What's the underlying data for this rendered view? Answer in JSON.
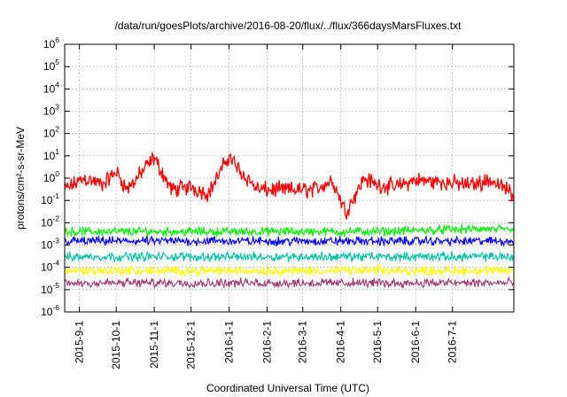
{
  "chart_data": {
    "type": "line",
    "title": "/data/run/goesPlots/archive/2016-08-20/flux/../flux/366daysMarsFluxes.txt",
    "xlabel": "Coordinated Universal Time (UTC)",
    "ylabel": "protons/cm²-s-sr-MeV",
    "yscale": "log",
    "ylim": [
      1e-06,
      1000000.0
    ],
    "xlim": [
      "2015-08-20",
      "2016-08-20"
    ],
    "grid": true,
    "legend": "none",
    "y_ticks": [
      {
        "base": "10",
        "exp": "-6"
      },
      {
        "base": "10",
        "exp": "-5"
      },
      {
        "base": "10",
        "exp": "-4"
      },
      {
        "base": "10",
        "exp": "-3"
      },
      {
        "base": "10",
        "exp": "-2"
      },
      {
        "base": "10",
        "exp": "-1"
      },
      {
        "base": "10",
        "exp": "0"
      },
      {
        "base": "10",
        "exp": "1"
      },
      {
        "base": "10",
        "exp": "2"
      },
      {
        "base": "10",
        "exp": "3"
      },
      {
        "base": "10",
        "exp": "4"
      },
      {
        "base": "10",
        "exp": "5"
      },
      {
        "base": "10",
        "exp": "6"
      }
    ],
    "x_ticks": [
      {
        "label": "2015-9-1",
        "date": "2015-09-01"
      },
      {
        "label": "2015-10-1",
        "date": "2015-10-01"
      },
      {
        "label": "2015-11-1",
        "date": "2015-11-01"
      },
      {
        "label": "2015-12-1",
        "date": "2015-12-01"
      },
      {
        "label": "2016-1-1",
        "date": "2016-01-01"
      },
      {
        "label": "2016-2-1",
        "date": "2016-02-01"
      },
      {
        "label": "2016-3-1",
        "date": "2016-03-01"
      },
      {
        "label": "2016-4-1",
        "date": "2016-04-01"
      },
      {
        "label": "2016-5-1",
        "date": "2016-05-01"
      },
      {
        "label": "2016-6-1",
        "date": "2016-06-01"
      },
      {
        "label": "2016-7-1",
        "date": "2016-07-01"
      }
    ],
    "series": [
      {
        "color": "#ff0000",
        "x": [
          "2015-08-20",
          "2015-09-05",
          "2015-09-20",
          "2015-10-01",
          "2015-10-10",
          "2015-10-25",
          "2015-11-01",
          "2015-11-15",
          "2015-12-01",
          "2015-12-15",
          "2016-01-01",
          "2016-01-10",
          "2016-01-25",
          "2016-02-10",
          "2016-02-25",
          "2016-03-10",
          "2016-03-25",
          "2016-04-05",
          "2016-04-20",
          "2016-05-01",
          "2016-05-15",
          "2016-06-01",
          "2016-06-15",
          "2016-07-01",
          "2016-07-15",
          "2016-08-01",
          "2016-08-20"
        ],
        "values": [
          0.3,
          1.0,
          0.5,
          2.0,
          0.3,
          3.0,
          8.0,
          0.3,
          0.4,
          0.2,
          10.0,
          2.0,
          0.3,
          0.3,
          0.3,
          0.3,
          0.8,
          0.03,
          1.0,
          0.5,
          0.4,
          0.8,
          0.7,
          0.6,
          0.5,
          0.8,
          0.2
        ]
      },
      {
        "color": "#00ee00",
        "x": [
          "2015-08-20",
          "2015-10-01",
          "2015-11-01",
          "2016-01-01",
          "2016-03-01",
          "2016-05-01",
          "2016-07-01",
          "2016-08-20"
        ],
        "values": [
          0.004,
          0.004,
          0.004,
          0.004,
          0.004,
          0.004,
          0.005,
          0.005
        ]
      },
      {
        "color": "#0000ff",
        "x": [
          "2015-08-20",
          "2015-10-01",
          "2015-11-01",
          "2016-01-01",
          "2016-03-01",
          "2016-05-01",
          "2016-07-01",
          "2016-08-20"
        ],
        "values": [
          0.0015,
          0.0015,
          0.0015,
          0.0015,
          0.0015,
          0.0015,
          0.0015,
          0.0015
        ]
      },
      {
        "color": "#00c0a0",
        "x": [
          "2015-08-20",
          "2015-10-01",
          "2015-11-01",
          "2016-01-01",
          "2016-03-01",
          "2016-05-01",
          "2016-07-01",
          "2016-08-20"
        ],
        "values": [
          0.0003,
          0.0003,
          0.0003,
          0.0003,
          0.0003,
          0.0003,
          0.0003,
          0.0003
        ]
      },
      {
        "color": "#ffff00",
        "x": [
          "2015-08-20",
          "2015-10-01",
          "2015-11-01",
          "2016-01-01",
          "2016-03-01",
          "2016-05-01",
          "2016-07-01",
          "2016-08-20"
        ],
        "values": [
          7e-05,
          7e-05,
          7e-05,
          7e-05,
          7e-05,
          7e-05,
          7e-05,
          7e-05
        ]
      },
      {
        "color": "#9e3a6e",
        "x": [
          "2015-08-20",
          "2015-10-01",
          "2015-11-01",
          "2016-01-01",
          "2016-03-01",
          "2016-05-01",
          "2016-07-01",
          "2016-08-20"
        ],
        "values": [
          2e-05,
          2e-05,
          2e-05,
          2e-05,
          2e-05,
          2e-05,
          2e-05,
          2e-05
        ]
      }
    ]
  }
}
